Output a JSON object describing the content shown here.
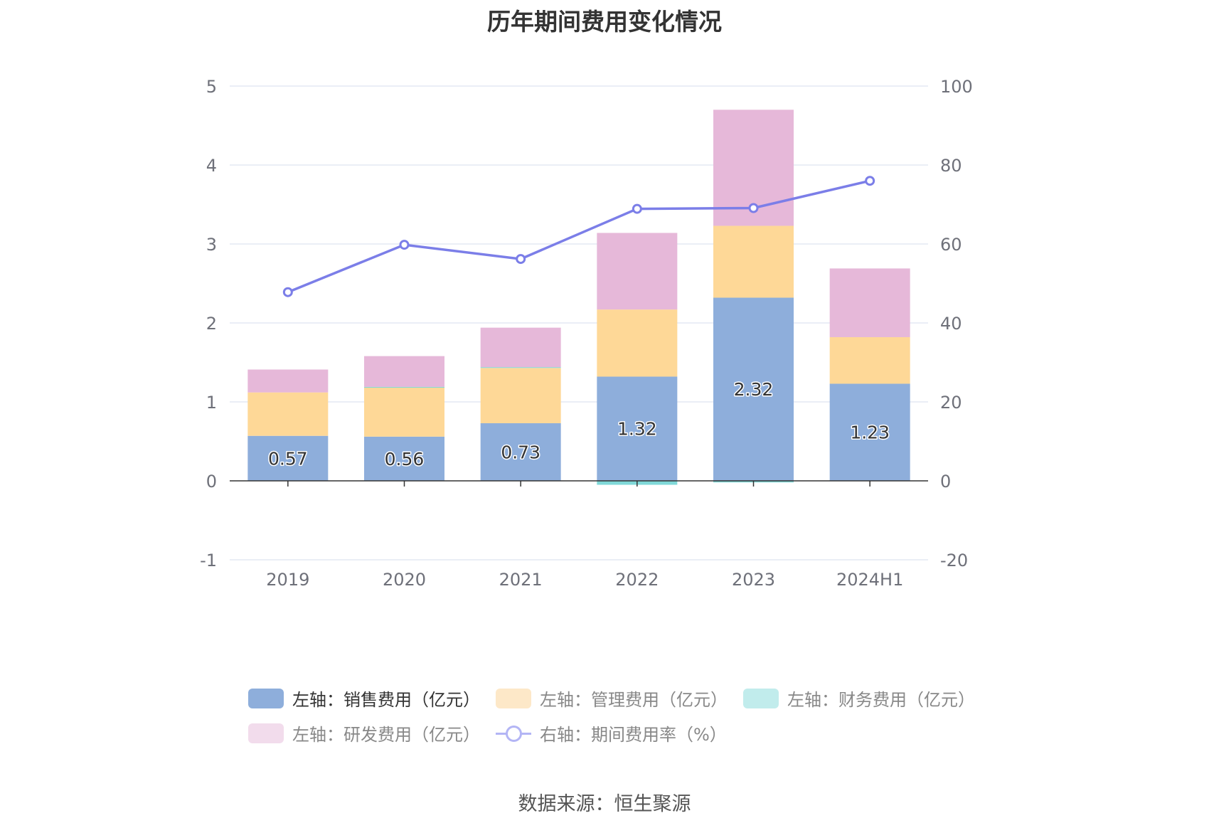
{
  "title": "历年期间费用变化情况",
  "source": "数据来源：恒生聚源",
  "legend": {
    "sales": "左轴：销售费用（亿元）",
    "admin": "左轴：管理费用（亿元）",
    "finance": "左轴：财务费用（亿元）",
    "rd": "左轴：研发费用（亿元）",
    "rate": "右轴：期间费用率（%）"
  },
  "colors": {
    "sales": "#8eaedb",
    "admin": "#fed897",
    "finance": "#80d8d8",
    "rd": "#e6b8d9",
    "rate": "#7b7ee8",
    "grid": "#dde3f0",
    "axis": "#333333",
    "tick": "#6e7079"
  },
  "chart_data": {
    "type": "bar",
    "categories": [
      "2019",
      "2020",
      "2021",
      "2022",
      "2023",
      "2024H1"
    ],
    "series": [
      {
        "name": "左轴：销售费用（亿元）",
        "axis": "left",
        "stack": true,
        "values": [
          0.57,
          0.56,
          0.73,
          1.32,
          2.32,
          1.23
        ],
        "labels": [
          "0.57",
          "0.56",
          "0.73",
          "1.32",
          "2.32",
          "1.23"
        ]
      },
      {
        "name": "左轴：管理费用（亿元）",
        "axis": "left",
        "stack": true,
        "values": [
          0.55,
          0.62,
          0.7,
          0.85,
          0.91,
          0.59
        ]
      },
      {
        "name": "左轴：财务费用（亿元）",
        "axis": "left",
        "stack": true,
        "values": [
          0.0,
          0.01,
          0.01,
          -0.05,
          -0.02,
          0.0
        ]
      },
      {
        "name": "左轴：研发费用（亿元）",
        "axis": "left",
        "stack": true,
        "values": [
          0.29,
          0.39,
          0.5,
          0.97,
          1.47,
          0.87
        ]
      },
      {
        "name": "右轴：期间费用率（%）",
        "axis": "right",
        "type": "line",
        "values": [
          47.8,
          59.8,
          56.2,
          68.9,
          69.1,
          76.0
        ]
      }
    ],
    "y_left": {
      "min": -1,
      "max": 5,
      "ticks": [
        "-1",
        "0",
        "1",
        "2",
        "3",
        "4",
        "5"
      ]
    },
    "y_right": {
      "min": -20,
      "max": 100,
      "ticks": [
        "-20",
        "0",
        "20",
        "40",
        "60",
        "80",
        "100"
      ]
    },
    "grid": true,
    "legend_position": "bottom"
  }
}
